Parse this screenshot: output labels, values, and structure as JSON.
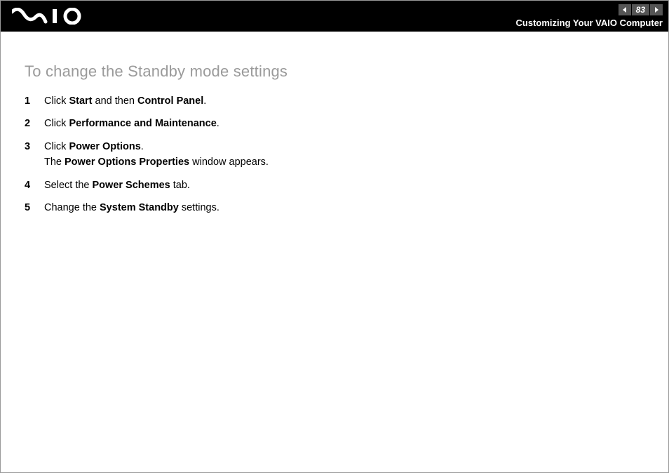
{
  "header": {
    "page_number": "83",
    "section_title": "Customizing Your VAIO Computer"
  },
  "content": {
    "heading": "To change the Standby mode settings",
    "steps": [
      {
        "num": "1",
        "html": "Click <b>Start</b> and then <b>Control Panel</b>."
      },
      {
        "num": "2",
        "html": "Click <b>Performance and Maintenance</b>."
      },
      {
        "num": "3",
        "html": "Click <b>Power Options</b>.<br>The <b>Power Options Properties</b> window appears."
      },
      {
        "num": "4",
        "html": "Select the <b>Power Schemes</b> tab."
      },
      {
        "num": "5",
        "html": "Change the <b>System Standby</b> settings."
      }
    ]
  },
  "colors": {
    "header_bg": "#000000",
    "heading_color": "#9a9a9a",
    "text_color": "#000000",
    "nav_box_bg": "#555555"
  }
}
